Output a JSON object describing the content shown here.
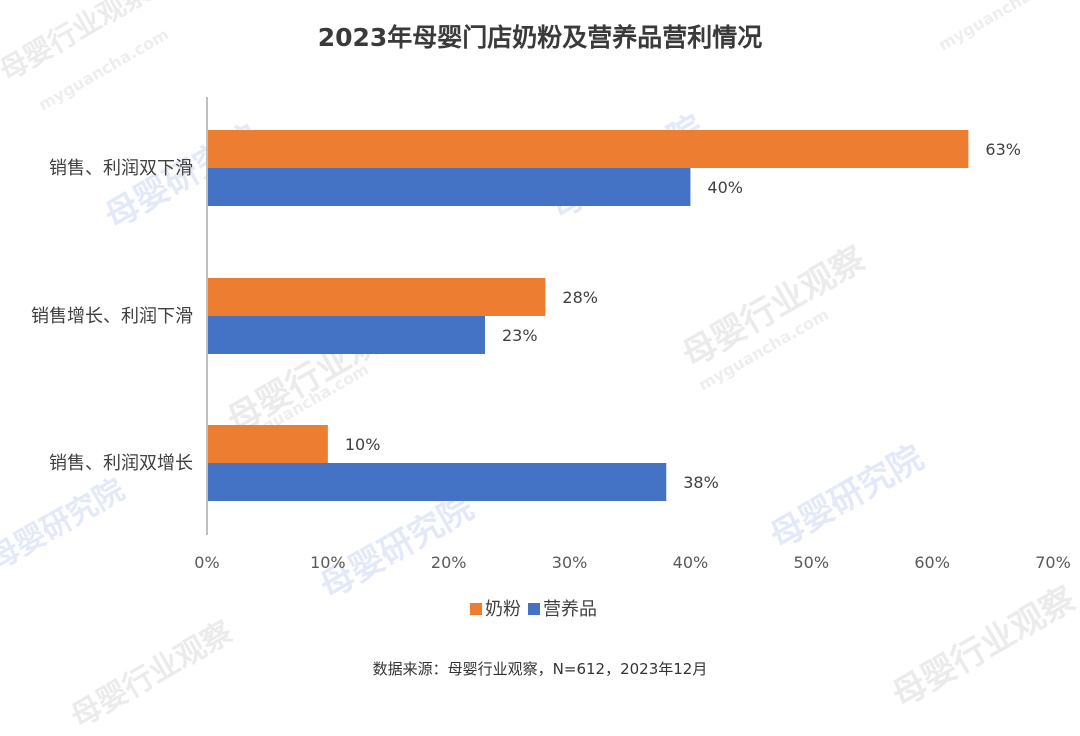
{
  "watermarks": [
    {
      "text": "母婴研究院",
      "color": "rgba(90,120,220,0.16)"
    },
    {
      "text": "母婴行业观察",
      "color": "rgba(120,120,120,0.15)"
    },
    {
      "text": "myguancha.com",
      "color": "rgba(120,120,120,0.13)"
    }
  ],
  "chart_data": {
    "type": "bar",
    "orientation": "horizontal",
    "title": "2023年母婴门店奶粉及营养品营利情况",
    "categories": [
      "销售、利润双下滑",
      "销售增长、利润下滑",
      "销售、利润双增长"
    ],
    "series": [
      {
        "name": "奶粉",
        "values": [
          63,
          28,
          10
        ],
        "color": "#ED7D31"
      },
      {
        "name": "营养品",
        "values": [
          40,
          23,
          38
        ],
        "color": "#4472C4"
      }
    ],
    "value_labels": [
      [
        "63%",
        "28%",
        "10%"
      ],
      [
        "40%",
        "23%",
        "38%"
      ]
    ],
    "xlim": [
      0,
      70
    ],
    "xticks": [
      "0%",
      "10%",
      "20%",
      "30%",
      "40%",
      "50%",
      "60%",
      "70%"
    ],
    "grid": false,
    "legend_position": "bottom",
    "source": "数据来源：母婴行业观察，N=612，2023年12月"
  }
}
